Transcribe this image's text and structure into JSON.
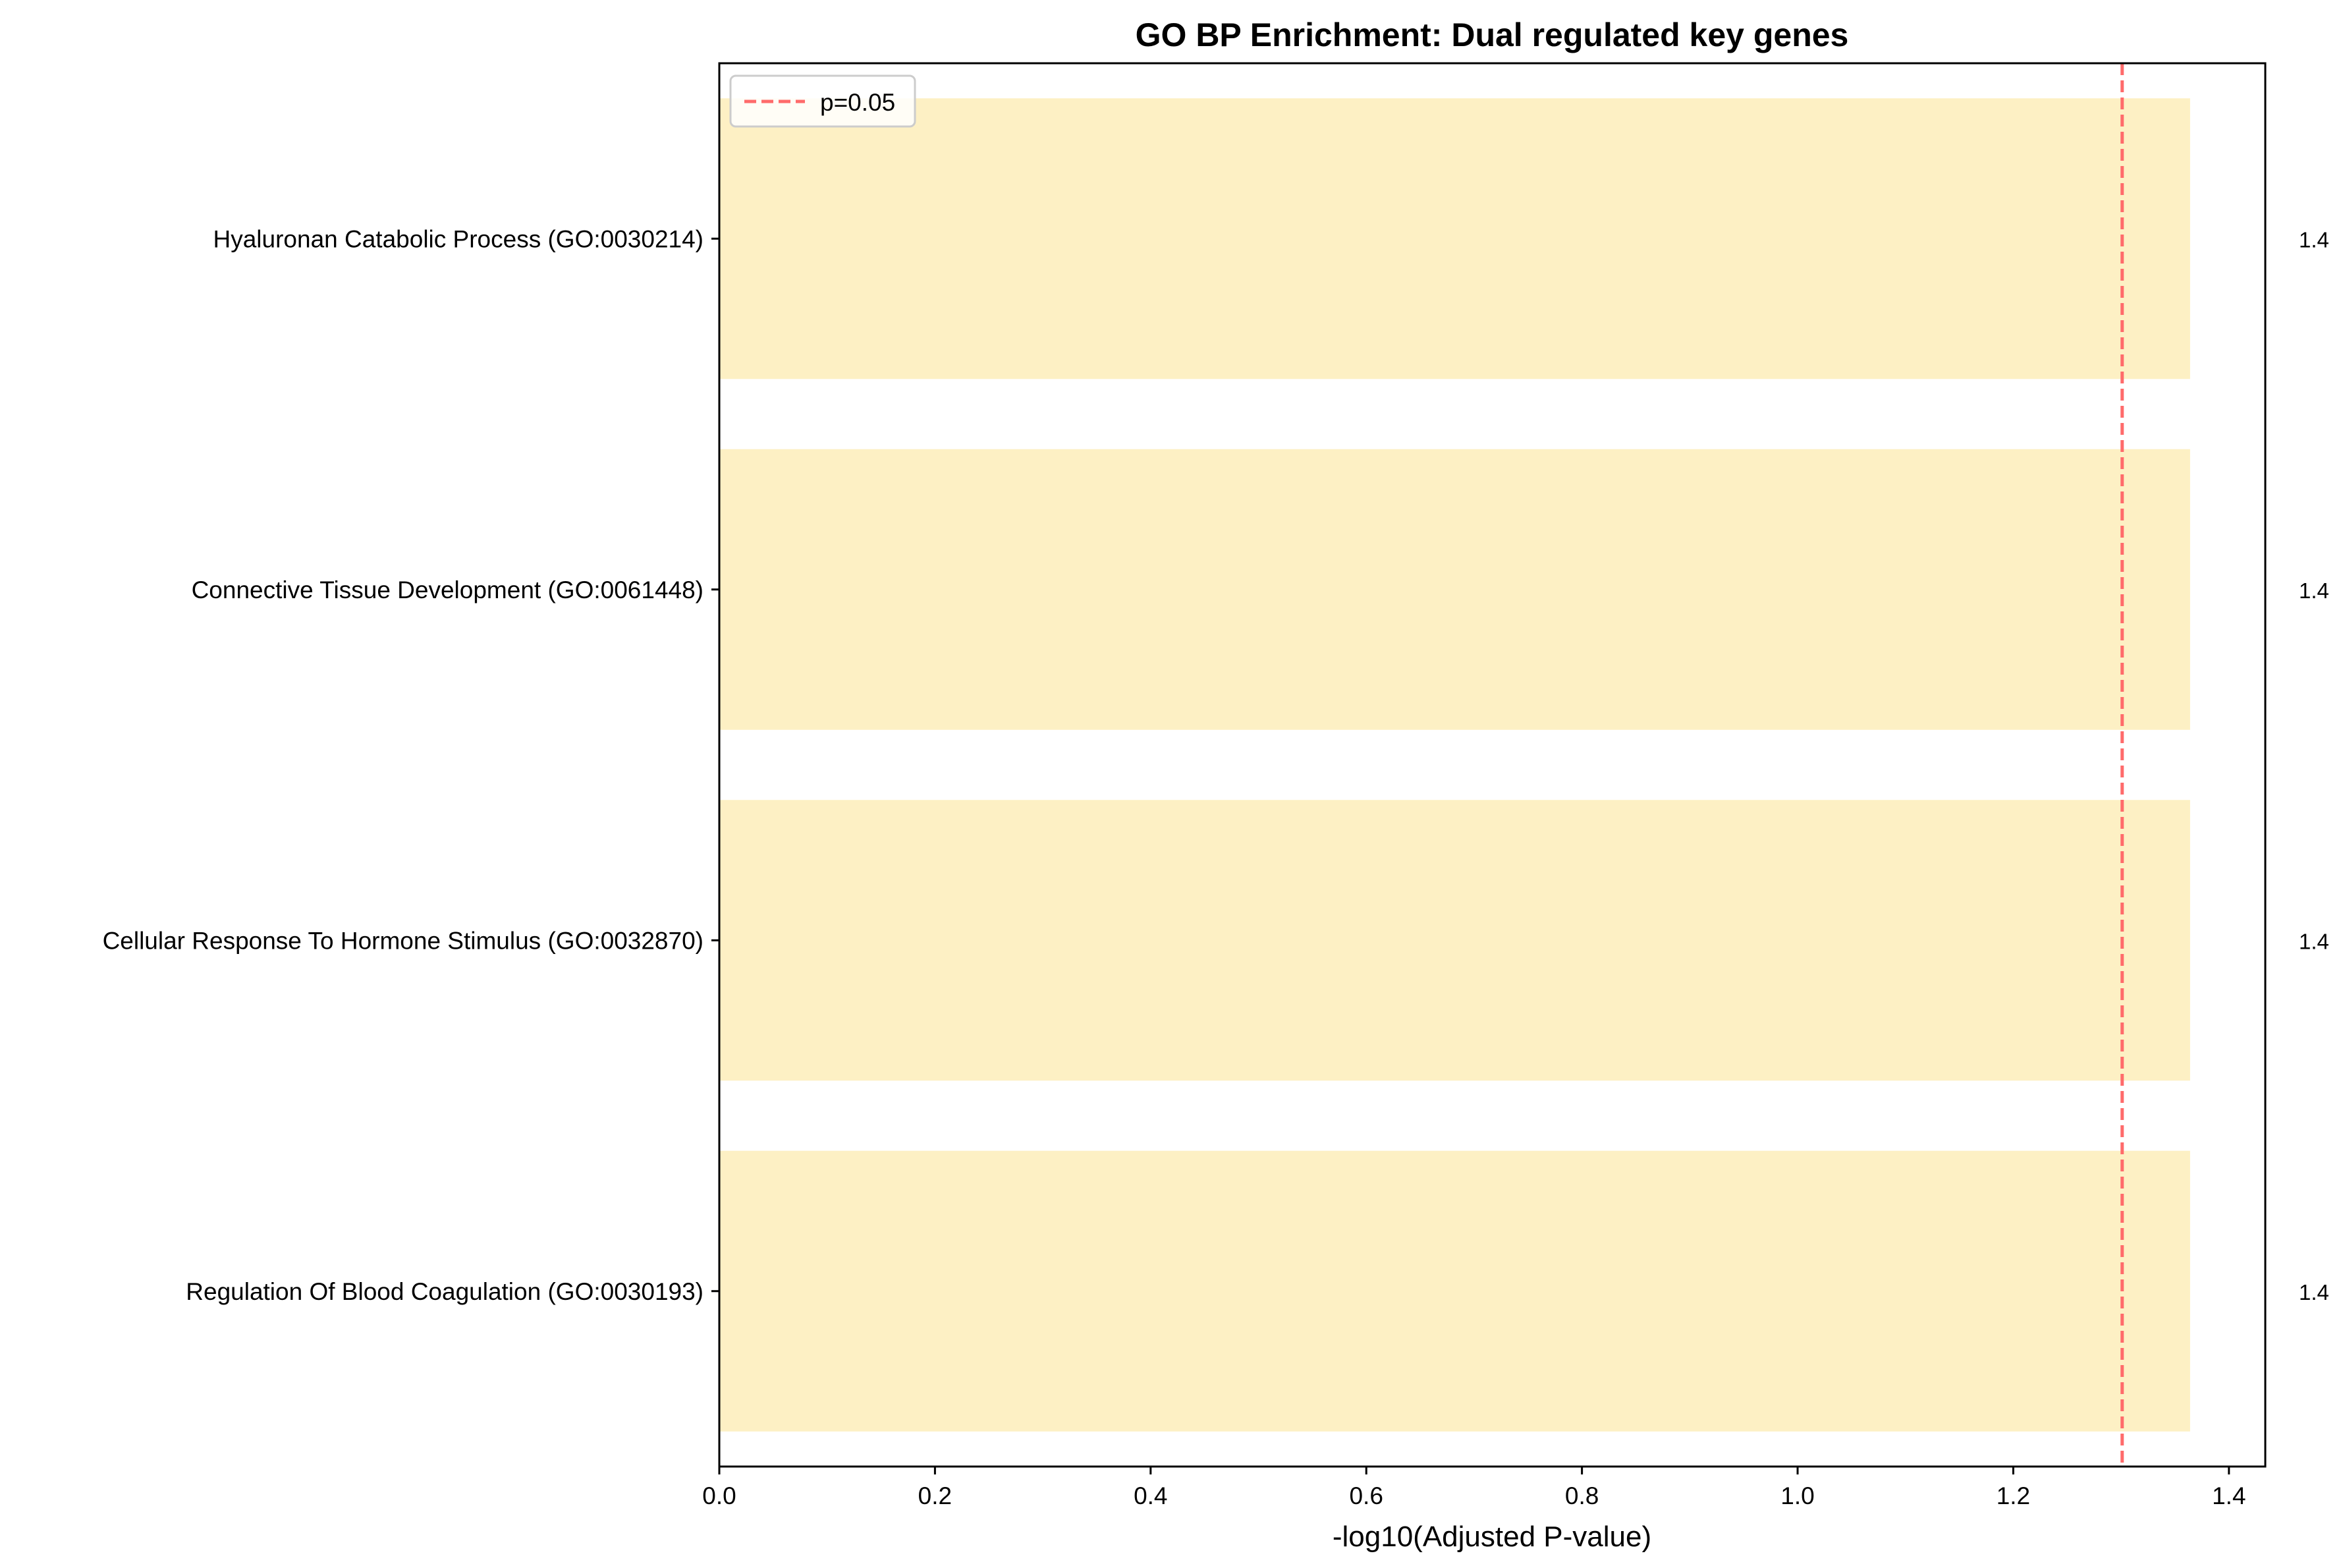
{
  "chart_data": {
    "type": "bar",
    "orientation": "horizontal",
    "title": "GO BP Enrichment: Dual regulated key genes",
    "xlabel": "-log10(Adjusted P-value)",
    "ylabel": "",
    "categories": [
      "Hyaluronan Catabolic Process (GO:0030214)",
      "Connective Tissue Development (GO:0061448)",
      "Cellular Response To Hormone Stimulus (GO:0032870)",
      "Regulation Of Blood Coagulation (GO:0030193)"
    ],
    "values": [
      1.364,
      1.364,
      1.364,
      1.364
    ],
    "value_labels": [
      "1.4",
      "1.4",
      "1.4",
      "1.4"
    ],
    "xlim": [
      0,
      1.4337
    ],
    "xticks": [
      0.0,
      0.2,
      0.4,
      0.6,
      0.8,
      1.0,
      1.2,
      1.4
    ],
    "xtick_labels": [
      "0.0",
      "0.2",
      "0.4",
      "0.6",
      "0.8",
      "1.0",
      "1.2",
      "1.4"
    ],
    "threshold": {
      "value": 1.301,
      "label": "p=0.05",
      "color": "#ff6b6b",
      "style": "dashed"
    },
    "bar_color": "#fdf0c4",
    "legend": {
      "position": "top-left",
      "entries": [
        "p=0.05"
      ]
    },
    "grid": false
  }
}
